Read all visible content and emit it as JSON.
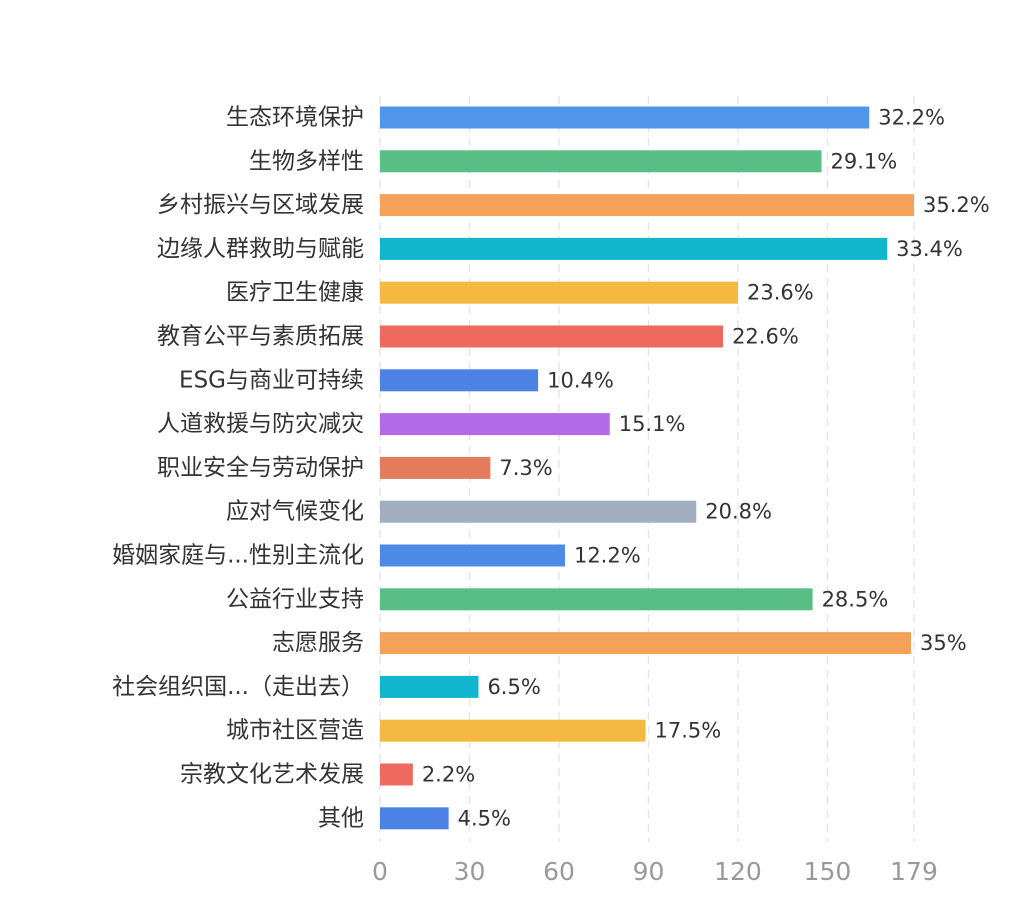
{
  "chart_data": {
    "type": "bar",
    "orientation": "horizontal",
    "categories": [
      "生态环境保护",
      "生物多样性",
      "乡村振兴与区域发展",
      "边缘人群救助与赋能",
      "医疗卫生健康",
      "教育公平与素质拓展",
      "ESG与商业可持续",
      "人道救援与防灾减灾",
      "职业安全与劳动保护",
      "应对气候变化",
      "婚姻家庭与...性别主流化",
      "公益行业支持",
      "志愿服务",
      "社会组织国...（走出去）",
      "城市社区营造",
      "宗教文化艺术发展",
      "其他"
    ],
    "values": [
      164,
      148,
      179,
      170,
      120,
      115,
      53,
      77,
      37,
      106,
      62,
      145,
      178,
      33,
      89,
      11,
      23
    ],
    "value_labels": [
      "32.2%",
      "29.1%",
      "35.2%",
      "33.4%",
      "23.6%",
      "22.6%",
      "10.4%",
      "15.1%",
      "7.3%",
      "20.8%",
      "12.2%",
      "28.5%",
      "35%",
      "6.5%",
      "17.5%",
      "2.2%",
      "4.5%"
    ],
    "colors": [
      "#4f95ea",
      "#58be85",
      "#f4a15a",
      "#10b6cd",
      "#f5b941",
      "#ef6a5e",
      "#4b82e4",
      "#b26ae6",
      "#e47c5c",
      "#a0aebf",
      "#4b8be6",
      "#58be85",
      "#f4a15a",
      "#10b6cd",
      "#f5b941",
      "#ef6a5e",
      "#4b82e4"
    ],
    "xticks": [
      "0",
      "30",
      "60",
      "90",
      "120",
      "150",
      "179"
    ],
    "xlim": [
      0,
      179
    ],
    "grid": true,
    "legend": "none"
  }
}
